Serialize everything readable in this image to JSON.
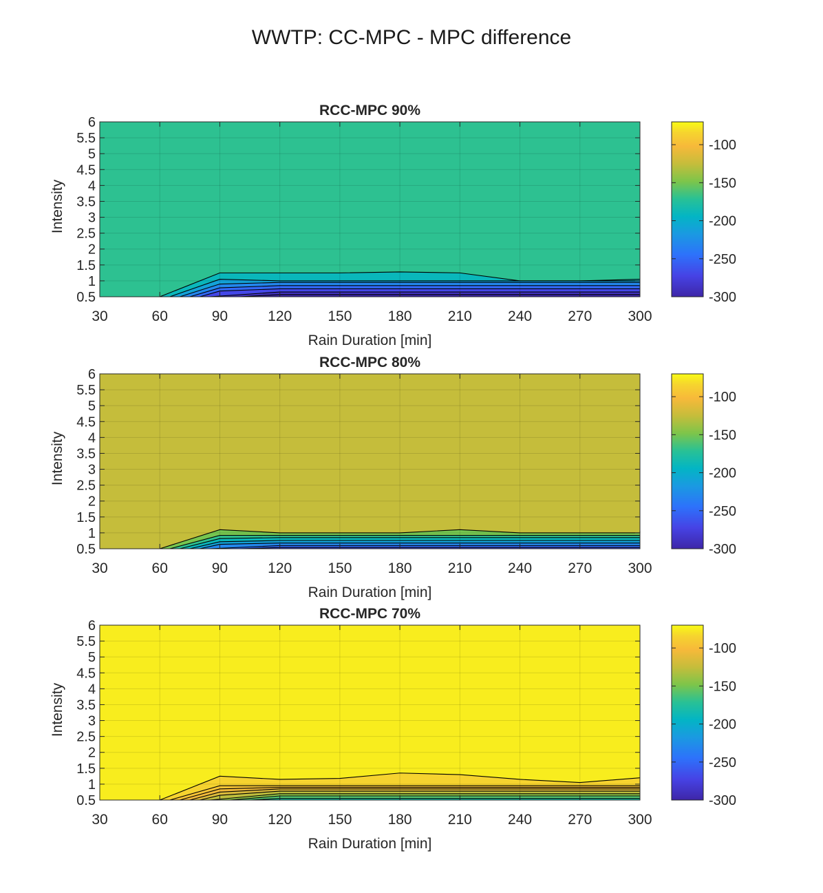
{
  "figure_title": "WWTP: CC-MPC - MPC difference",
  "chart_data": [
    {
      "type": "contour",
      "title": "RCC-MPC 90%",
      "xlabel": "Rain Duration [min]",
      "ylabel": "Intensity",
      "xlim": [
        30,
        300
      ],
      "ylim": [
        0.5,
        6
      ],
      "xticks": [
        30,
        60,
        90,
        120,
        150,
        180,
        210,
        240,
        270,
        300
      ],
      "yticks": [
        0.5,
        1,
        1.5,
        2,
        2.5,
        3,
        3.5,
        4,
        4.5,
        5,
        5.5,
        6
      ],
      "ytick_labels": [
        "0.5",
        "1",
        "1.5",
        "2",
        "2.5",
        "3",
        "3.5",
        "4",
        "4.5",
        "5",
        "5.5",
        "6"
      ],
      "grid": true,
      "background_value": -170,
      "contour_lines": [
        {
          "value": -180,
          "points": [
            [
              60,
              0.5
            ],
            [
              90,
              1.25
            ],
            [
              150,
              1.25
            ],
            [
              180,
              1.28
            ],
            [
              210,
              1.25
            ],
            [
              240,
              1.0
            ],
            [
              270,
              1.0
            ],
            [
              300,
              1.05
            ]
          ]
        },
        {
          "value": -200,
          "points": [
            [
              65,
              0.5
            ],
            [
              90,
              1.05
            ],
            [
              120,
              1.0
            ],
            [
              300,
              1.0
            ]
          ]
        },
        {
          "value": -220,
          "points": [
            [
              70,
              0.5
            ],
            [
              90,
              0.9
            ],
            [
              120,
              0.95
            ],
            [
              300,
              0.95
            ]
          ]
        },
        {
          "value": -240,
          "points": [
            [
              75,
              0.5
            ],
            [
              90,
              0.78
            ],
            [
              120,
              0.85
            ],
            [
              300,
              0.85
            ]
          ]
        },
        {
          "value": -260,
          "points": [
            [
              80,
              0.5
            ],
            [
              90,
              0.68
            ],
            [
              120,
              0.75
            ],
            [
              300,
              0.75
            ]
          ]
        },
        {
          "value": -280,
          "points": [
            [
              85,
              0.5
            ],
            [
              120,
              0.65
            ],
            [
              300,
              0.65
            ]
          ]
        },
        {
          "value": -300,
          "points": [
            [
              100,
              0.5
            ],
            [
              120,
              0.57
            ],
            [
              300,
              0.57
            ]
          ]
        }
      ],
      "colorbar": {
        "ticks": [
          -100,
          -150,
          -200,
          -250,
          -300
        ],
        "range": [
          -300,
          -70
        ]
      }
    },
    {
      "type": "contour",
      "title": "RCC-MPC 80%",
      "xlabel": "Rain Duration [min]",
      "ylabel": "Intensity",
      "xlim": [
        30,
        300
      ],
      "ylim": [
        0.5,
        6
      ],
      "xticks": [
        30,
        60,
        90,
        120,
        150,
        180,
        210,
        240,
        270,
        300
      ],
      "yticks": [
        0.5,
        1,
        1.5,
        2,
        2.5,
        3,
        3.5,
        4,
        4.5,
        5,
        5.5,
        6
      ],
      "ytick_labels": [
        "0.5",
        "1",
        "1.5",
        "2",
        "2.5",
        "3",
        "3.5",
        "4",
        "4.5",
        "5",
        "5.5",
        "6"
      ],
      "grid": true,
      "background_value": -125,
      "contour_lines": [
        {
          "value": -140,
          "points": [
            [
              60,
              0.5
            ],
            [
              90,
              1.1
            ],
            [
              120,
              1.0
            ],
            [
              180,
              1.0
            ],
            [
              210,
              1.1
            ],
            [
              240,
              1.0
            ],
            [
              300,
              1.0
            ],
            [
              300,
              1.05
            ]
          ]
        },
        {
          "value": -160,
          "points": [
            [
              65,
              0.5
            ],
            [
              90,
              0.92
            ],
            [
              120,
              0.92
            ],
            [
              300,
              0.92
            ]
          ]
        },
        {
          "value": -180,
          "points": [
            [
              70,
              0.5
            ],
            [
              90,
              0.82
            ],
            [
              120,
              0.85
            ],
            [
              300,
              0.85
            ]
          ]
        },
        {
          "value": -200,
          "points": [
            [
              75,
              0.5
            ],
            [
              90,
              0.72
            ],
            [
              120,
              0.76
            ],
            [
              300,
              0.76
            ]
          ]
        },
        {
          "value": -220,
          "points": [
            [
              80,
              0.5
            ],
            [
              90,
              0.64
            ],
            [
              120,
              0.68
            ],
            [
              300,
              0.68
            ]
          ]
        },
        {
          "value": -240,
          "points": [
            [
              85,
              0.5
            ],
            [
              120,
              0.6
            ],
            [
              300,
              0.6
            ]
          ]
        },
        {
          "value": -260,
          "points": [
            [
              100,
              0.5
            ],
            [
              120,
              0.54
            ],
            [
              300,
              0.54
            ]
          ]
        }
      ],
      "colorbar": {
        "ticks": [
          -100,
          -150,
          -200,
          -250,
          -300
        ],
        "range": [
          -300,
          -70
        ]
      }
    },
    {
      "type": "contour",
      "title": "RCC-MPC 70%",
      "xlabel": "Rain Duration [min]",
      "ylabel": "Intensity",
      "xlim": [
        30,
        300
      ],
      "ylim": [
        0.5,
        6
      ],
      "xticks": [
        30,
        60,
        90,
        120,
        150,
        180,
        210,
        240,
        270,
        300
      ],
      "yticks": [
        0.5,
        1,
        1.5,
        2,
        2.5,
        3,
        3.5,
        4,
        4.5,
        5,
        5.5,
        6
      ],
      "ytick_labels": [
        "0.5",
        "1",
        "1.5",
        "2",
        "2.5",
        "3",
        "3.5",
        "4",
        "4.5",
        "5",
        "5.5",
        "6"
      ],
      "grid": true,
      "background_value": -75,
      "contour_lines": [
        {
          "value": -80,
          "points": [
            [
              60,
              0.5
            ],
            [
              90,
              1.25
            ],
            [
              120,
              1.15
            ],
            [
              150,
              1.18
            ],
            [
              180,
              1.35
            ],
            [
              210,
              1.3
            ],
            [
              240,
              1.15
            ],
            [
              270,
              1.05
            ],
            [
              300,
              1.2
            ]
          ]
        },
        {
          "value": -90,
          "points": [
            [
              65,
              0.5
            ],
            [
              90,
              0.95
            ],
            [
              120,
              0.95
            ],
            [
              300,
              0.95
            ]
          ]
        },
        {
          "value": -100,
          "points": [
            [
              70,
              0.5
            ],
            [
              90,
              0.85
            ],
            [
              120,
              0.9
            ],
            [
              300,
              0.9
            ]
          ]
        },
        {
          "value": -110,
          "points": [
            [
              75,
              0.5
            ],
            [
              90,
              0.75
            ],
            [
              120,
              0.85
            ],
            [
              300,
              0.85
            ]
          ]
        },
        {
          "value": -120,
          "points": [
            [
              80,
              0.5
            ],
            [
              90,
              0.65
            ],
            [
              120,
              0.78
            ],
            [
              300,
              0.78
            ]
          ]
        },
        {
          "value": -135,
          "points": [
            [
              85,
              0.5
            ],
            [
              120,
              0.7
            ],
            [
              300,
              0.7
            ]
          ]
        },
        {
          "value": -150,
          "points": [
            [
              95,
              0.5
            ],
            [
              120,
              0.63
            ],
            [
              300,
              0.63
            ]
          ]
        },
        {
          "value": -170,
          "points": [
            [
              105,
              0.5
            ],
            [
              120,
              0.55
            ],
            [
              300,
              0.55
            ]
          ]
        }
      ],
      "colorbar": {
        "ticks": [
          -100,
          -150,
          -200,
          -250,
          -300
        ],
        "range": [
          -300,
          -70
        ]
      }
    }
  ]
}
